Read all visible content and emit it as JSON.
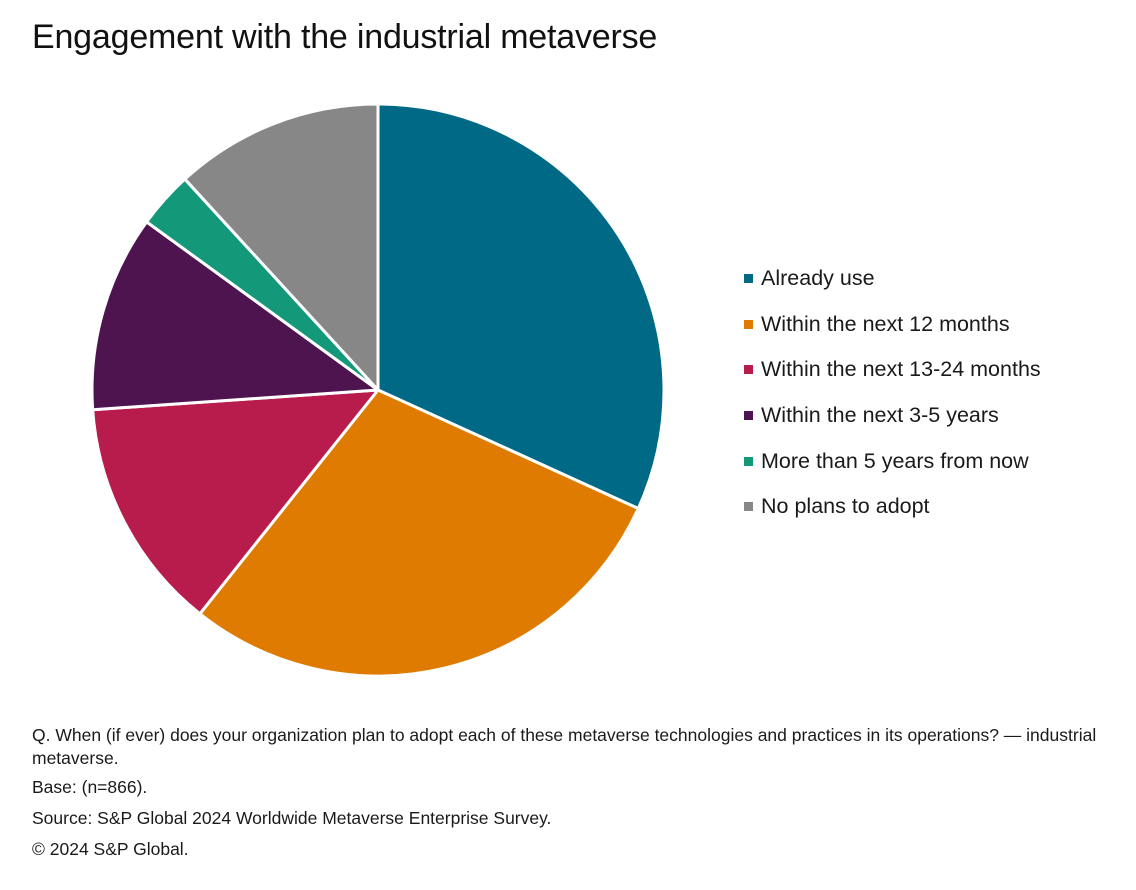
{
  "chart_data": {
    "type": "pie",
    "title": "Engagement with the industrial metaverse",
    "slices": [
      {
        "label": "Already use",
        "value": 31.8,
        "color": "#006a86"
      },
      {
        "label": "Within the next 12 months",
        "value": 28.9,
        "color": "#de7b00"
      },
      {
        "label": "Within the next 13-24 months",
        "value": 13.2,
        "color": "#b71c4d"
      },
      {
        "label": "Within the next 3-5 years",
        "value": 11.1,
        "color": "#4d1450"
      },
      {
        "label": "More than 5 years from now",
        "value": 3.2,
        "color": "#13997a"
      },
      {
        "label": "No plans to adopt",
        "value": 11.8,
        "color": "#878787"
      }
    ],
    "legend_position": "right",
    "start_angle": "12 o'clock",
    "direction": "clockwise"
  },
  "footnotes": {
    "question": "Q. When (if ever) does your organization plan to adopt each of these metaverse technologies and practices in its operations? — industrial metaverse.",
    "base": "Base: (n=866).",
    "source": "Source: S&P Global 2024 Worldwide Metaverse Enterprise Survey.",
    "copyright": "© 2024 S&P Global."
  }
}
